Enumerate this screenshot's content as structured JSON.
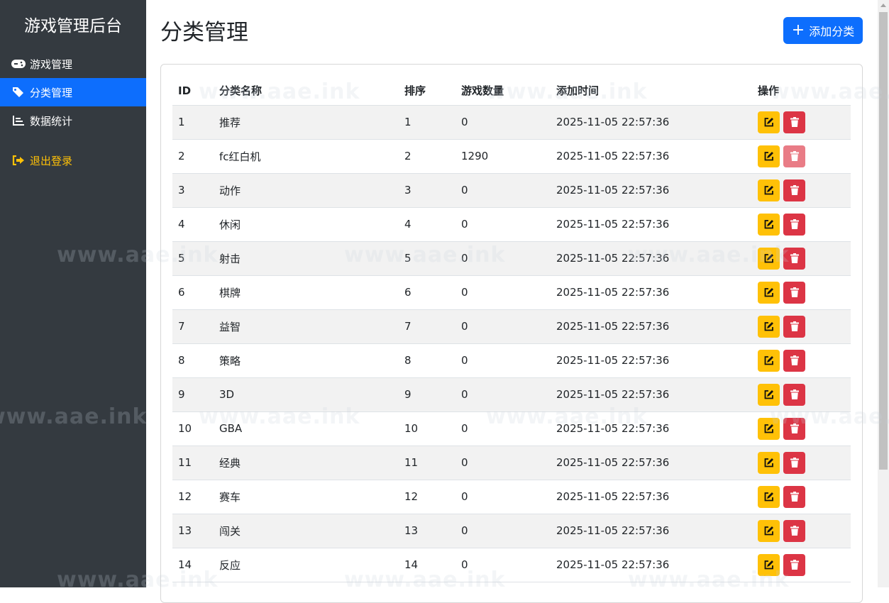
{
  "sidebar": {
    "brand": "游戏管理后台",
    "items": [
      {
        "label": "游戏管理",
        "icon": "gamepad-icon",
        "active": false
      },
      {
        "label": "分类管理",
        "icon": "tags-icon",
        "active": true
      },
      {
        "label": "数据统计",
        "icon": "chart-bar-icon",
        "active": false
      }
    ],
    "logout": {
      "label": "退出登录",
      "icon": "sign-out-icon"
    }
  },
  "page": {
    "title": "分类管理",
    "add_button": "添加分类"
  },
  "table": {
    "headers": [
      "ID",
      "分类名称",
      "排序",
      "游戏数量",
      "添加时间",
      "操作"
    ],
    "rows": [
      [
        "1",
        "推荐",
        "1",
        "0",
        "2025-11-05 22:57:36"
      ],
      [
        "2",
        "fc红白机",
        "2",
        "1290",
        "2025-11-05 22:57:36"
      ],
      [
        "3",
        "动作",
        "3",
        "0",
        "2025-11-05 22:57:36"
      ],
      [
        "4",
        "休闲",
        "4",
        "0",
        "2025-11-05 22:57:36"
      ],
      [
        "5",
        "射击",
        "5",
        "0",
        "2025-11-05 22:57:36"
      ],
      [
        "6",
        "棋牌",
        "6",
        "0",
        "2025-11-05 22:57:36"
      ],
      [
        "7",
        "益智",
        "7",
        "0",
        "2025-11-05 22:57:36"
      ],
      [
        "8",
        "策略",
        "8",
        "0",
        "2025-11-05 22:57:36"
      ],
      [
        "9",
        "3D",
        "9",
        "0",
        "2025-11-05 22:57:36"
      ],
      [
        "10",
        "GBA",
        "10",
        "0",
        "2025-11-05 22:57:36"
      ],
      [
        "11",
        "经典",
        "11",
        "0",
        "2025-11-05 22:57:36"
      ],
      [
        "12",
        "赛车",
        "12",
        "0",
        "2025-11-05 22:57:36"
      ],
      [
        "13",
        "闯关",
        "13",
        "0",
        "2025-11-05 22:57:36"
      ],
      [
        "14",
        "反应",
        "14",
        "0",
        "2025-11-05 22:57:36"
      ]
    ],
    "disabled_delete_rows": [
      "2"
    ]
  },
  "watermark": "www.aae.ink",
  "colors": {
    "sidebar": "#343a40",
    "primary": "#0d6efd",
    "warning": "#ffc107",
    "danger": "#dc3545"
  }
}
